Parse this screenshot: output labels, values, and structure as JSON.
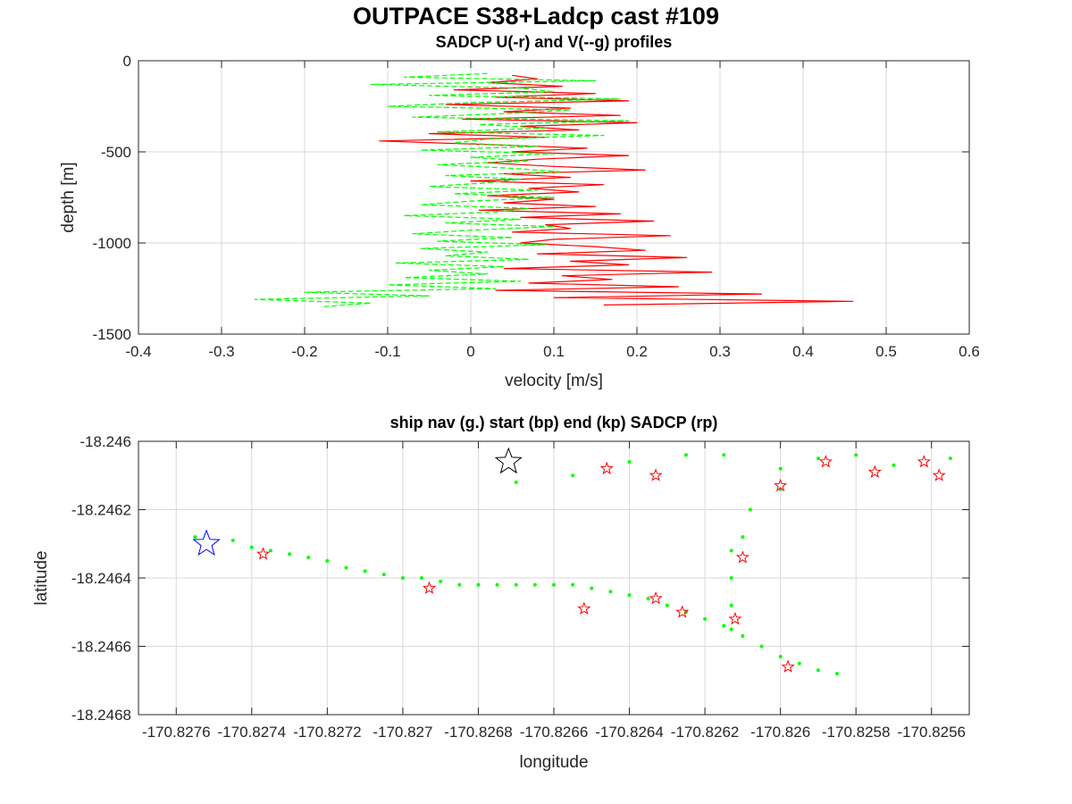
{
  "figure_title": "OUTPACE S38+Ladcp cast #109",
  "chart_data": [
    {
      "type": "line",
      "title": "SADCP U(-r) and V(--g) profiles",
      "xlabel": "velocity [m/s]",
      "ylabel": "depth [m]",
      "xlim": [
        -0.4,
        0.6
      ],
      "ylim": [
        -1500,
        0
      ],
      "grid": true,
      "xticks": [
        -0.4,
        -0.3,
        -0.2,
        -0.1,
        0,
        0.1,
        0.2,
        0.3,
        0.4,
        0.5,
        0.6
      ],
      "xtick_labels": [
        "-0.4",
        "-0.3",
        "-0.2",
        "-0.1",
        "0",
        "0.1",
        "0.2",
        "0.3",
        "0.4",
        "0.5",
        "0.6"
      ],
      "yticks": [
        0,
        -500,
        -1000,
        -1500
      ],
      "ytick_labels": [
        "0",
        "-500",
        "-1000",
        "-1500"
      ],
      "series": [
        {
          "name": "U",
          "color": "#ff0000",
          "style": "solid",
          "depth": [
            -80,
            -100,
            -120,
            -140,
            -160,
            -180,
            -200,
            -220,
            -240,
            -260,
            -280,
            -300,
            -320,
            -340,
            -360,
            -380,
            -400,
            -420,
            -440,
            -460,
            -480,
            -500,
            -520,
            -540,
            -560,
            -580,
            -600,
            -620,
            -640,
            -660,
            -680,
            -700,
            -720,
            -740,
            -760,
            -780,
            -800,
            -820,
            -840,
            -860,
            -880,
            -900,
            -920,
            -940,
            -960,
            -980,
            -1000,
            -1020,
            -1040,
            -1060,
            -1080,
            -1100,
            -1120,
            -1140,
            -1160,
            -1180,
            -1200,
            -1220,
            -1240,
            -1260,
            -1280,
            -1300,
            -1320,
            -1340
          ],
          "values": [
            0.05,
            0.08,
            0.02,
            0.11,
            -0.02,
            0.15,
            0.03,
            0.19,
            -0.03,
            0.12,
            0.04,
            0.18,
            -0.01,
            0.2,
            0.06,
            0.13,
            -0.05,
            0.09,
            -0.11,
            0.02,
            0.14,
            0.05,
            0.19,
            0.08,
            0.02,
            0.1,
            0.21,
            0.04,
            0.12,
            0.0,
            0.16,
            0.07,
            0.13,
            0.02,
            0.1,
            0.04,
            0.15,
            0.01,
            0.18,
            0.06,
            0.22,
            0.09,
            0.12,
            0.05,
            0.24,
            0.1,
            0.06,
            0.15,
            0.21,
            0.08,
            0.26,
            0.12,
            0.19,
            0.04,
            0.29,
            0.11,
            0.17,
            0.07,
            0.25,
            0.03,
            0.35,
            0.1,
            0.46,
            0.16
          ]
        },
        {
          "name": "V",
          "color": "#00ff00",
          "style": "dashed",
          "depth": [
            -70,
            -90,
            -110,
            -130,
            -150,
            -170,
            -190,
            -210,
            -230,
            -250,
            -270,
            -290,
            -310,
            -330,
            -350,
            -370,
            -390,
            -410,
            -430,
            -450,
            -470,
            -490,
            -510,
            -530,
            -550,
            -570,
            -590,
            -610,
            -630,
            -650,
            -670,
            -690,
            -710,
            -730,
            -750,
            -770,
            -790,
            -810,
            -830,
            -850,
            -870,
            -890,
            -910,
            -930,
            -950,
            -970,
            -990,
            -1010,
            -1030,
            -1050,
            -1070,
            -1090,
            -1110,
            -1130,
            -1150,
            -1170,
            -1190,
            -1210,
            -1230,
            -1250,
            -1270,
            -1290,
            -1310,
            -1330,
            -1350
          ],
          "values": [
            0.02,
            -0.08,
            0.15,
            -0.12,
            0.06,
            0.1,
            -0.05,
            0.18,
            0.0,
            -0.1,
            0.12,
            0.04,
            -0.07,
            0.19,
            0.01,
            0.09,
            -0.04,
            0.16,
            0.02,
            -0.02,
            0.08,
            -0.06,
            0.1,
            0.0,
            0.07,
            -0.04,
            0.05,
            0.11,
            -0.03,
            0.06,
            0.02,
            -0.05,
            0.08,
            -0.02,
            0.1,
            0.0,
            -0.06,
            0.07,
            0.03,
            -0.08,
            0.06,
            -0.03,
            0.1,
            0.0,
            -0.07,
            0.05,
            -0.04,
            0.09,
            -0.06,
            0.02,
            -0.03,
            0.07,
            -0.09,
            0.04,
            -0.05,
            0.02,
            -0.08,
            0.06,
            -0.1,
            0.03,
            -0.2,
            -0.05,
            -0.26,
            -0.12,
            -0.18
          ]
        }
      ]
    },
    {
      "type": "scatter",
      "title": "ship nav (g.) start (bp) end (kp) SADCP (rp)",
      "xlabel": "longitude",
      "ylabel": "latitude",
      "xlim": [
        -170.8277,
        -170.8255
      ],
      "ylim": [
        -18.2468,
        -18.246
      ],
      "grid": true,
      "xticks": [
        -170.8276,
        -170.8274,
        -170.8272,
        -170.827,
        -170.8268,
        -170.8266,
        -170.8264,
        -170.8262,
        -170.826,
        -170.8258,
        -170.8256
      ],
      "xtick_labels": [
        "-170.8276",
        "-170.8274",
        "-170.8272",
        "-170.827",
        "-170.8268",
        "-170.8266",
        "-170.8264",
        "-170.8262",
        "-170.826",
        "-170.8258",
        "-170.8256"
      ],
      "yticks": [
        -18.246,
        -18.2462,
        -18.2464,
        -18.2466,
        -18.2468
      ],
      "ytick_labels": [
        "-18.246",
        "-18.2462",
        "-18.2464",
        "-18.2466",
        "-18.2468"
      ],
      "series": [
        {
          "name": "ship nav",
          "color": "#00ff00",
          "marker": "dot",
          "points": [
            [
              -170.82755,
              -18.24628
            ],
            [
              -170.82745,
              -18.24629
            ],
            [
              -170.8274,
              -18.24631
            ],
            [
              -170.82735,
              -18.24632
            ],
            [
              -170.8273,
              -18.24633
            ],
            [
              -170.82725,
              -18.24634
            ],
            [
              -170.8272,
              -18.24635
            ],
            [
              -170.82715,
              -18.24637
            ],
            [
              -170.8271,
              -18.24638
            ],
            [
              -170.82705,
              -18.24639
            ],
            [
              -170.827,
              -18.2464
            ],
            [
              -170.82695,
              -18.2464
            ],
            [
              -170.8269,
              -18.24641
            ],
            [
              -170.82685,
              -18.24642
            ],
            [
              -170.8268,
              -18.24642
            ],
            [
              -170.82675,
              -18.24642
            ],
            [
              -170.8267,
              -18.24642
            ],
            [
              -170.82665,
              -18.24642
            ],
            [
              -170.8266,
              -18.24642
            ],
            [
              -170.82655,
              -18.24642
            ],
            [
              -170.8265,
              -18.24643
            ],
            [
              -170.82645,
              -18.24644
            ],
            [
              -170.8264,
              -18.24645
            ],
            [
              -170.82635,
              -18.24646
            ],
            [
              -170.8263,
              -18.24648
            ],
            [
              -170.82625,
              -18.2465
            ],
            [
              -170.8262,
              -18.24652
            ],
            [
              -170.82615,
              -18.24654
            ],
            [
              -170.8261,
              -18.24657
            ],
            [
              -170.82605,
              -18.2466
            ],
            [
              -170.826,
              -18.24663
            ],
            [
              -170.82595,
              -18.24665
            ],
            [
              -170.8259,
              -18.24667
            ],
            [
              -170.82585,
              -18.24668
            ],
            [
              -170.82613,
              -18.24655
            ],
            [
              -170.82613,
              -18.24648
            ],
            [
              -170.82613,
              -18.2464
            ],
            [
              -170.82613,
              -18.24632
            ],
            [
              -170.8261,
              -18.24628
            ],
            [
              -170.82608,
              -18.2462
            ],
            [
              -170.826,
              -18.24614
            ],
            [
              -170.826,
              -18.24608
            ],
            [
              -170.82615,
              -18.24604
            ],
            [
              -170.8259,
              -18.24605
            ],
            [
              -170.8258,
              -18.24604
            ],
            [
              -170.8257,
              -18.24607
            ],
            [
              -170.82555,
              -18.24605
            ],
            [
              -170.82625,
              -18.24604
            ],
            [
              -170.8264,
              -18.24606
            ],
            [
              -170.82655,
              -18.2461
            ],
            [
              -170.8267,
              -18.24612
            ]
          ]
        },
        {
          "name": "start",
          "color": "#0000ff",
          "marker": "star",
          "points": [
            [
              -170.82752,
              -18.2463
            ]
          ]
        },
        {
          "name": "end",
          "color": "#000000",
          "marker": "star",
          "points": [
            [
              -170.82672,
              -18.24606
            ]
          ]
        },
        {
          "name": "SADCP",
          "color": "#ff0000",
          "marker": "star",
          "points": [
            [
              -170.82737,
              -18.24633
            ],
            [
              -170.82693,
              -18.24643
            ],
            [
              -170.82652,
              -18.24649
            ],
            [
              -170.82633,
              -18.24646
            ],
            [
              -170.82626,
              -18.2465
            ],
            [
              -170.82612,
              -18.24652
            ],
            [
              -170.82598,
              -18.24666
            ],
            [
              -170.82633,
              -18.2461
            ],
            [
              -170.82646,
              -18.24608
            ],
            [
              -170.8261,
              -18.24634
            ],
            [
              -170.826,
              -18.24613
            ],
            [
              -170.82588,
              -18.24606
            ],
            [
              -170.82575,
              -18.24609
            ],
            [
              -170.82562,
              -18.24606
            ],
            [
              -170.82558,
              -18.2461
            ]
          ]
        }
      ]
    }
  ]
}
